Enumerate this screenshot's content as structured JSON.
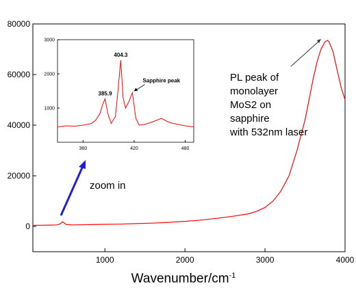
{
  "chart_data": [
    {
      "type": "line",
      "role": "main",
      "xlabel": "Wavenumber/cm",
      "xlabel_sup": "-1",
      "xlim": [
        100,
        4000
      ],
      "ylim": [
        -10000,
        80000
      ],
      "xticks": [
        1000,
        2000,
        3000,
        4000
      ],
      "yticks": [
        0,
        20000,
        40000,
        60000,
        80000
      ],
      "series_color": "#ff0000",
      "x": [
        100,
        200,
        300,
        400,
        440,
        470,
        520,
        600,
        800,
        1000,
        1200,
        1400,
        1600,
        1800,
        2000,
        2200,
        2400,
        2600,
        2800,
        2900,
        3000,
        3100,
        3200,
        3300,
        3400,
        3500,
        3550,
        3600,
        3650,
        3700,
        3750,
        3780,
        3800,
        3850,
        3900,
        3950,
        4000
      ],
      "y": [
        400,
        450,
        500,
        600,
        1000,
        1800,
        700,
        600,
        700,
        800,
        900,
        1100,
        1300,
        1600,
        2000,
        2500,
        3200,
        4000,
        5000,
        6000,
        7500,
        10000,
        14000,
        20000,
        30000,
        42000,
        50000,
        58000,
        65000,
        70000,
        73000,
        73500,
        73000,
        69000,
        62000,
        55000,
        50000
      ]
    },
    {
      "type": "line",
      "role": "inset",
      "xlim": [
        330,
        490
      ],
      "ylim": [
        0,
        3000
      ],
      "xticks": [
        360,
        420,
        480
      ],
      "yticks": [
        1000,
        2000,
        3000
      ],
      "series_color": "#ff0000",
      "x": [
        330,
        340,
        350,
        360,
        370,
        375,
        380,
        383,
        385.9,
        389,
        393,
        398,
        401,
        404.3,
        407,
        410,
        414,
        418,
        422,
        426,
        432,
        440,
        446,
        452,
        458,
        464,
        472,
        480,
        490
      ],
      "y": [
        450,
        480,
        470,
        500,
        550,
        650,
        850,
        1100,
        1270,
        850,
        550,
        750,
        1500,
        2400,
        1300,
        1000,
        1200,
        1450,
        700,
        500,
        520,
        580,
        640,
        700,
        620,
        560,
        520,
        480,
        450
      ],
      "annotations": [
        {
          "text": "385.9",
          "x": 385.9,
          "y": 1270
        },
        {
          "text": "404.3",
          "x": 404.3,
          "y": 2400
        },
        {
          "text": "Sapphire peak",
          "x": 418,
          "y": 1450
        }
      ]
    }
  ],
  "annotations": {
    "pl_peak": [
      "PL peak of",
      "monolayer",
      "MoS2 on",
      "sapphire",
      "with 532nm laser"
    ],
    "zoom": "zoom in"
  },
  "colors": {
    "series": "#ff0000",
    "arrow_blue": "#1f1fd6",
    "axis": "#000000"
  }
}
